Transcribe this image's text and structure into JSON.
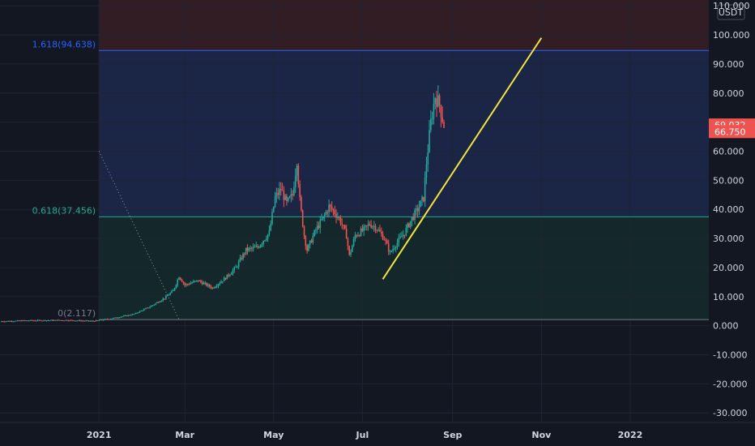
{
  "chart_data": {
    "type": "candlestick",
    "currency": "USDT",
    "ylim": [
      -33000,
      112000
    ],
    "yticks": [
      {
        "v": 110000,
        "label": "110.000"
      },
      {
        "v": 100000,
        "label": "100.000"
      },
      {
        "v": 90000,
        "label": "90.000"
      },
      {
        "v": 80000,
        "label": "80.000"
      },
      {
        "v": 70000,
        "label": ""
      },
      {
        "v": 60000,
        "label": "60.000"
      },
      {
        "v": 50000,
        "label": "50.000"
      },
      {
        "v": 40000,
        "label": "40.000"
      },
      {
        "v": 30000,
        "label": "30.000"
      },
      {
        "v": 20000,
        "label": "20.000"
      },
      {
        "v": 10000,
        "label": "10.000"
      },
      {
        "v": 0,
        "label": "0.000"
      },
      {
        "v": -10000,
        "label": "-10.000"
      },
      {
        "v": -20000,
        "label": "-20.000"
      },
      {
        "v": -30000,
        "label": "-30.000"
      }
    ],
    "xticks": [
      {
        "date": "2021-01-01",
        "label": "2021"
      },
      {
        "date": "2021-03-01",
        "label": "Mar"
      },
      {
        "date": "2021-05-01",
        "label": "May"
      },
      {
        "date": "2021-07-01",
        "label": "Jul"
      },
      {
        "date": "2021-09-01",
        "label": "Sep"
      },
      {
        "date": "2021-11-01",
        "label": "Nov"
      },
      {
        "date": "2022-01-01",
        "label": "2022"
      }
    ],
    "xlim": [
      "2020-10-25",
      "2022-02-24"
    ],
    "price_trajectory": [
      [
        "2020-10-25",
        1500
      ],
      [
        "2020-11-15",
        1800
      ],
      [
        "2020-12-10",
        1900
      ],
      [
        "2020-12-28",
        1600
      ],
      [
        "2021-01-10",
        2500
      ],
      [
        "2021-01-25",
        4000
      ],
      [
        "2021-02-05",
        6500
      ],
      [
        "2021-02-15",
        9500
      ],
      [
        "2021-02-21",
        12000
      ],
      [
        "2021-02-25",
        17000
      ],
      [
        "2021-03-01",
        14000
      ],
      [
        "2021-03-10",
        15500
      ],
      [
        "2021-03-20",
        13000
      ],
      [
        "2021-03-28",
        16000
      ],
      [
        "2021-04-05",
        20000
      ],
      [
        "2021-04-12",
        26000
      ],
      [
        "2021-04-20",
        27000
      ],
      [
        "2021-04-28",
        32000
      ],
      [
        "2021-05-02",
        44000
      ],
      [
        "2021-05-06",
        47000
      ],
      [
        "2021-05-10",
        42000
      ],
      [
        "2021-05-14",
        45000
      ],
      [
        "2021-05-17",
        57000
      ],
      [
        "2021-05-19",
        43000
      ],
      [
        "2021-05-22",
        31000
      ],
      [
        "2021-05-24",
        26000
      ],
      [
        "2021-05-30",
        33000
      ],
      [
        "2021-06-04",
        37000
      ],
      [
        "2021-06-08",
        41000
      ],
      [
        "2021-06-12",
        39000
      ],
      [
        "2021-06-16",
        36000
      ],
      [
        "2021-06-20",
        31000
      ],
      [
        "2021-06-22",
        24000
      ],
      [
        "2021-06-26",
        31000
      ],
      [
        "2021-07-02",
        33000
      ],
      [
        "2021-07-06",
        35000
      ],
      [
        "2021-07-10",
        34000
      ],
      [
        "2021-07-16",
        30000
      ],
      [
        "2021-07-20",
        25000
      ],
      [
        "2021-07-24",
        28000
      ],
      [
        "2021-07-30",
        32000
      ],
      [
        "2021-08-03",
        36000
      ],
      [
        "2021-08-08",
        40000
      ],
      [
        "2021-08-12",
        44000
      ],
      [
        "2021-08-14",
        56000
      ],
      [
        "2021-08-17",
        70000
      ],
      [
        "2021-08-20",
        79000
      ],
      [
        "2021-08-23",
        76000
      ],
      [
        "2021-08-26",
        69000
      ]
    ],
    "last_price": {
      "value": 69032,
      "label": "69.032"
    },
    "prev_price": {
      "value": 66750,
      "label": "66.750"
    },
    "fib_levels": [
      {
        "ratio_label": "1.618(94.638)",
        "value": 94638,
        "color": "#2962ff"
      },
      {
        "ratio_label": "0.618(37.456)",
        "value": 37456,
        "color": "#22ab94"
      },
      {
        "ratio_label": "0(2.117)",
        "value": 2117,
        "color": "#787b86"
      }
    ],
    "fib_start_date": "2021-01-01",
    "fib_anchor_line": {
      "from": [
        "2021-01-01",
        60000
      ],
      "to": [
        "2021-02-25",
        2117
      ]
    },
    "trend_line": {
      "from": [
        "2021-07-15",
        16000
      ],
      "to": [
        "2021-11-01",
        99000
      ],
      "color": "#f0e442"
    },
    "colors": {
      "background": "#131722",
      "up": "#26a69a",
      "down": "#ef5350",
      "grid": "#1f2433",
      "text": "#d1d4dc",
      "badge_last": "#ef5350",
      "badge_prev": "#ef5350"
    }
  }
}
